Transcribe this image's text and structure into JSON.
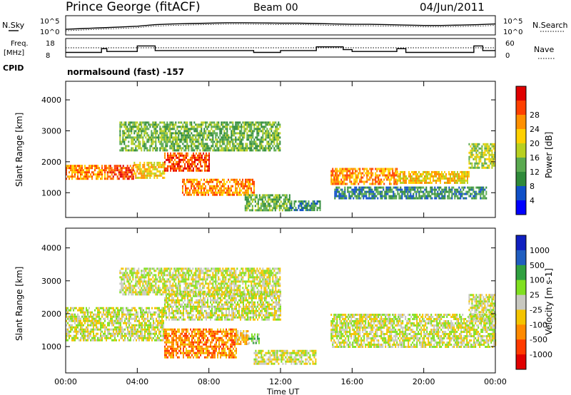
{
  "header": {
    "station": "Prince George (fitACF)",
    "beam": "Beam 00",
    "date": "04/Jun/2011",
    "cpid_label": "CPID",
    "cpid_text": "normalsound (fast) -157"
  },
  "strips": {
    "nsky_label": "N.Sky",
    "nsearch_label": "N.Search",
    "freq_label_1": "Freq.",
    "freq_label_2": "[MHz]",
    "nave_label": "Nave",
    "noise_ticks": [
      "10^5",
      "10^0"
    ],
    "freq_ticks": [
      "18",
      "8"
    ],
    "nave_ticks": [
      "60",
      "0"
    ]
  },
  "colors": {
    "velocity_scale": [
      "#e00000",
      "#ff3a00",
      "#ff8a00",
      "#f4c400",
      "#c8c8c0",
      "#80e020",
      "#30a040",
      "#205ec0",
      "#1020c0"
    ],
    "power_scale": [
      "#0000ff",
      "#1050c8",
      "#2f8a3a",
      "#5aaa50",
      "#b8d020",
      "#ffd000",
      "#ff9000",
      "#ff4000",
      "#e00000"
    ],
    "ground_scatter": "#c8c8c0"
  },
  "chart_data": [
    {
      "type": "heatmap",
      "name": "power-panel",
      "ylabel": "Slant Range [km]",
      "yticks": [
        1000,
        2000,
        3000,
        4000
      ],
      "ylim": [
        200,
        4600
      ],
      "xticks": [
        "00:00",
        "04:00",
        "08:00",
        "12:00",
        "16:00",
        "20:00",
        "00:00"
      ],
      "xlim": [
        0,
        24
      ],
      "colorbar_label": "Power [dB]",
      "colorbar_ticks": [
        "4",
        "8",
        "12",
        "16",
        "20",
        "24",
        "28"
      ],
      "bands": [
        {
          "t0": 0.0,
          "t1": 2.3,
          "r0": 1450,
          "r1": 1900,
          "level": 6
        },
        {
          "t0": 2.3,
          "t1": 3.8,
          "r0": 1450,
          "r1": 1900,
          "level": 7
        },
        {
          "t0": 3.8,
          "t1": 5.5,
          "r0": 1500,
          "r1": 2000,
          "level": 5
        },
        {
          "t0": 5.5,
          "t1": 8.0,
          "r0": 1700,
          "r1": 2300,
          "level": 7
        },
        {
          "t0": 6.5,
          "t1": 10.5,
          "r0": 950,
          "r1": 1450,
          "level": 6
        },
        {
          "t0": 3.0,
          "t1": 12.0,
          "r0": 2400,
          "r1": 3300,
          "level": 3
        },
        {
          "t0": 10.0,
          "t1": 12.5,
          "r0": 450,
          "r1": 950,
          "level": 3
        },
        {
          "t0": 12.5,
          "t1": 14.2,
          "r0": 450,
          "r1": 750,
          "level": 2
        },
        {
          "t0": 14.8,
          "t1": 18.5,
          "r0": 1300,
          "r1": 1800,
          "level": 6
        },
        {
          "t0": 18.5,
          "t1": 22.5,
          "r0": 1300,
          "r1": 1700,
          "level": 5
        },
        {
          "t0": 15.0,
          "t1": 23.5,
          "r0": 800,
          "r1": 1200,
          "level": 2
        },
        {
          "t0": 22.5,
          "t1": 24.0,
          "r0": 1800,
          "r1": 2600,
          "level": 4
        }
      ]
    },
    {
      "type": "heatmap",
      "name": "velocity-panel",
      "ylabel": "Slant Range [km]",
      "yticks": [
        1000,
        2000,
        3000,
        4000
      ],
      "ylim": [
        200,
        4600
      ],
      "xticks": [
        "00:00",
        "04:00",
        "08:00",
        "12:00",
        "16:00",
        "20:00",
        "00:00"
      ],
      "xlim": [
        0,
        24
      ],
      "xlabel": "Time UT",
      "colorbar_label": "Velocity [m s-1]",
      "colorbar_ticks": [
        "1000",
        "500",
        "100",
        "25",
        "-25",
        "-100",
        "-500",
        "-1000"
      ],
      "bands": [
        {
          "t0": 0.0,
          "t1": 5.5,
          "r0": 1200,
          "r1": 2200,
          "level": 4
        },
        {
          "t0": 5.5,
          "t1": 12.0,
          "r0": 1800,
          "r1": 2700,
          "level": 4
        },
        {
          "t0": 3.0,
          "t1": 12.0,
          "r0": 2600,
          "r1": 3400,
          "level": 4
        },
        {
          "t0": 5.5,
          "t1": 9.5,
          "r0": 650,
          "r1": 1550,
          "level": 2
        },
        {
          "t0": 9.5,
          "t1": 10.2,
          "r0": 1100,
          "r1": 1500,
          "level": 3
        },
        {
          "t0": 10.2,
          "t1": 10.8,
          "r0": 1100,
          "r1": 1400,
          "level": 5
        },
        {
          "t0": 10.5,
          "t1": 14.0,
          "r0": 500,
          "r1": 900,
          "level": 4
        },
        {
          "t0": 14.8,
          "t1": 24.0,
          "r0": 1000,
          "r1": 2000,
          "level": 4
        },
        {
          "t0": 22.5,
          "t1": 24.0,
          "r0": 1800,
          "r1": 2600,
          "level": 4
        }
      ]
    }
  ],
  "noise_trace": [
    2.2,
    2.4,
    2.6,
    2.8,
    3.0,
    3.4,
    3.6,
    3.7,
    3.8,
    3.9,
    3.9,
    3.85,
    3.8,
    3.8,
    3.7,
    3.6,
    3.5,
    3.5,
    3.4,
    3.3,
    3.2,
    3.2,
    3.3,
    3.4,
    3.6
  ],
  "freq_trace": [
    {
      "t0": 0.0,
      "t1": 2.0,
      "f": 10.5
    },
    {
      "t0": 2.0,
      "t1": 2.3,
      "f": 12.5
    },
    {
      "t0": 2.3,
      "t1": 4.0,
      "f": 11.0
    },
    {
      "t0": 4.0,
      "t1": 5.0,
      "f": 14.0
    },
    {
      "t0": 5.0,
      "t1": 10.5,
      "f": 11.5
    },
    {
      "t0": 10.5,
      "t1": 12.0,
      "f": 10.5
    },
    {
      "t0": 12.0,
      "t1": 14.0,
      "f": 11.5
    },
    {
      "t0": 14.0,
      "t1": 15.5,
      "f": 13.5
    },
    {
      "t0": 15.5,
      "t1": 16.0,
      "f": 12.0
    },
    {
      "t0": 16.0,
      "t1": 18.5,
      "f": 11.0
    },
    {
      "t0": 18.5,
      "t1": 19.0,
      "f": 12.5
    },
    {
      "t0": 19.0,
      "t1": 22.8,
      "f": 10.5
    },
    {
      "t0": 22.8,
      "t1": 23.3,
      "f": 14.0
    },
    {
      "t0": 23.3,
      "t1": 24.0,
      "f": 11.5
    }
  ],
  "nave_level": 30
}
